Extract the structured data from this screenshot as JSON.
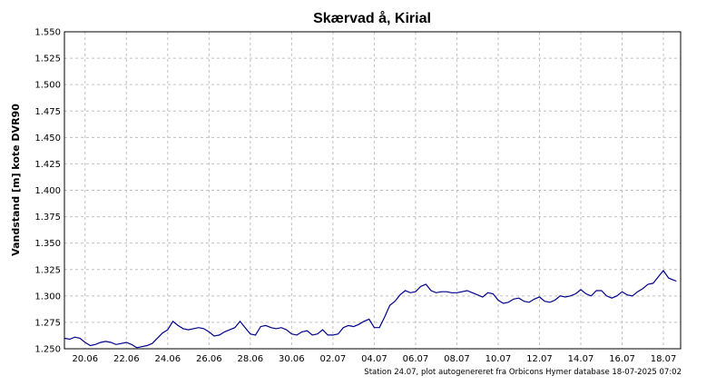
{
  "chart_data": {
    "type": "line",
    "title": "Skærvad å, Kirial",
    "ylabel": "Vandstand [m] kote DVR90",
    "xlabel": "",
    "footer": "Station 24.07, plot autogenereret fra Orbicons Hymer database 18-07-2025 07:02",
    "ylim": [
      1.25,
      1.55
    ],
    "yticks": [
      "1.550",
      "1.525",
      "1.500",
      "1.475",
      "1.450",
      "1.425",
      "1.400",
      "1.375",
      "1.350",
      "1.325",
      "1.300",
      "1.275",
      "1.250"
    ],
    "xlim": [
      "2025-06-19T00:00",
      "2025-07-18T20:00"
    ],
    "xticks": [
      {
        "label": "20.06",
        "date": "2025-06-20"
      },
      {
        "label": "22.06",
        "date": "2025-06-22"
      },
      {
        "label": "24.06",
        "date": "2025-06-24"
      },
      {
        "label": "26.06",
        "date": "2025-06-26"
      },
      {
        "label": "28.06",
        "date": "2025-06-28"
      },
      {
        "label": "30.06",
        "date": "2025-06-30"
      },
      {
        "label": "02.07",
        "date": "2025-07-02"
      },
      {
        "label": "04.07",
        "date": "2025-07-04"
      },
      {
        "label": "06.07",
        "date": "2025-07-06"
      },
      {
        "label": "08.07",
        "date": "2025-07-08"
      },
      {
        "label": "10.07",
        "date": "2025-07-10"
      },
      {
        "label": "12.07",
        "date": "2025-07-12"
      },
      {
        "label": "14.07",
        "date": "2025-07-14"
      },
      {
        "label": "16.07",
        "date": "2025-07-16"
      },
      {
        "label": "18.07",
        "date": "2025-07-18"
      }
    ],
    "grid": true,
    "line_color": "#00008b",
    "series": [
      {
        "name": "",
        "points": [
          [
            "2025-06-19T00:00",
            1.26
          ],
          [
            "2025-06-19T06:00",
            1.259
          ],
          [
            "2025-06-19T12:00",
            1.261
          ],
          [
            "2025-06-19T18:00",
            1.26
          ],
          [
            "2025-06-20T00:00",
            1.256
          ],
          [
            "2025-06-20T06:00",
            1.253
          ],
          [
            "2025-06-20T12:00",
            1.254
          ],
          [
            "2025-06-20T18:00",
            1.256
          ],
          [
            "2025-06-21T00:00",
            1.257
          ],
          [
            "2025-06-21T06:00",
            1.256
          ],
          [
            "2025-06-21T12:00",
            1.254
          ],
          [
            "2025-06-21T18:00",
            1.255
          ],
          [
            "2025-06-22T00:00",
            1.256
          ],
          [
            "2025-06-22T06:00",
            1.254
          ],
          [
            "2025-06-22T12:00",
            1.251
          ],
          [
            "2025-06-22T18:00",
            1.252
          ],
          [
            "2025-06-23T00:00",
            1.253
          ],
          [
            "2025-06-23T06:00",
            1.255
          ],
          [
            "2025-06-23T12:00",
            1.26
          ],
          [
            "2025-06-23T18:00",
            1.265
          ],
          [
            "2025-06-24T00:00",
            1.268
          ],
          [
            "2025-06-24T06:00",
            1.276
          ],
          [
            "2025-06-24T12:00",
            1.272
          ],
          [
            "2025-06-24T18:00",
            1.269
          ],
          [
            "2025-06-25T00:00",
            1.268
          ],
          [
            "2025-06-25T06:00",
            1.269
          ],
          [
            "2025-06-25T12:00",
            1.27
          ],
          [
            "2025-06-25T18:00",
            1.269
          ],
          [
            "2025-06-26T00:00",
            1.266
          ],
          [
            "2025-06-26T06:00",
            1.262
          ],
          [
            "2025-06-26T12:00",
            1.263
          ],
          [
            "2025-06-26T18:00",
            1.266
          ],
          [
            "2025-06-27T00:00",
            1.268
          ],
          [
            "2025-06-27T06:00",
            1.27
          ],
          [
            "2025-06-27T12:00",
            1.276
          ],
          [
            "2025-06-27T18:00",
            1.27
          ],
          [
            "2025-06-28T00:00",
            1.264
          ],
          [
            "2025-06-28T06:00",
            1.263
          ],
          [
            "2025-06-28T12:00",
            1.271
          ],
          [
            "2025-06-28T18:00",
            1.272
          ],
          [
            "2025-06-29T00:00",
            1.27
          ],
          [
            "2025-06-29T06:00",
            1.269
          ],
          [
            "2025-06-29T12:00",
            1.27
          ],
          [
            "2025-06-29T18:00",
            1.268
          ],
          [
            "2025-06-30T00:00",
            1.264
          ],
          [
            "2025-06-30T06:00",
            1.263
          ],
          [
            "2025-06-30T12:00",
            1.266
          ],
          [
            "2025-06-30T18:00",
            1.267
          ],
          [
            "2025-07-01T00:00",
            1.263
          ],
          [
            "2025-07-01T06:00",
            1.264
          ],
          [
            "2025-07-01T12:00",
            1.268
          ],
          [
            "2025-07-01T18:00",
            1.263
          ],
          [
            "2025-07-02T00:00",
            1.263
          ],
          [
            "2025-07-02T06:00",
            1.264
          ],
          [
            "2025-07-02T12:00",
            1.27
          ],
          [
            "2025-07-02T18:00",
            1.272
          ],
          [
            "2025-07-03T00:00",
            1.271
          ],
          [
            "2025-07-03T06:00",
            1.273
          ],
          [
            "2025-07-03T12:00",
            1.276
          ],
          [
            "2025-07-03T18:00",
            1.278
          ],
          [
            "2025-07-04T00:00",
            1.27
          ],
          [
            "2025-07-04T06:00",
            1.27
          ],
          [
            "2025-07-04T12:00",
            1.28
          ],
          [
            "2025-07-04T18:00",
            1.291
          ],
          [
            "2025-07-05T00:00",
            1.295
          ],
          [
            "2025-07-05T06:00",
            1.301
          ],
          [
            "2025-07-05T12:00",
            1.305
          ],
          [
            "2025-07-05T18:00",
            1.303
          ],
          [
            "2025-07-06T00:00",
            1.304
          ],
          [
            "2025-07-06T06:00",
            1.309
          ],
          [
            "2025-07-06T12:00",
            1.311
          ],
          [
            "2025-07-06T18:00",
            1.305
          ],
          [
            "2025-07-07T00:00",
            1.303
          ],
          [
            "2025-07-07T06:00",
            1.304
          ],
          [
            "2025-07-07T12:00",
            1.304
          ],
          [
            "2025-07-07T18:00",
            1.303
          ],
          [
            "2025-07-08T00:00",
            1.303
          ],
          [
            "2025-07-08T06:00",
            1.304
          ],
          [
            "2025-07-08T12:00",
            1.305
          ],
          [
            "2025-07-08T18:00",
            1.303
          ],
          [
            "2025-07-09T00:00",
            1.301
          ],
          [
            "2025-07-09T06:00",
            1.299
          ],
          [
            "2025-07-09T12:00",
            1.303
          ],
          [
            "2025-07-09T18:00",
            1.302
          ],
          [
            "2025-07-10T00:00",
            1.296
          ],
          [
            "2025-07-10T06:00",
            1.293
          ],
          [
            "2025-07-10T12:00",
            1.294
          ],
          [
            "2025-07-10T18:00",
            1.297
          ],
          [
            "2025-07-11T00:00",
            1.298
          ],
          [
            "2025-07-11T06:00",
            1.295
          ],
          [
            "2025-07-11T12:00",
            1.294
          ],
          [
            "2025-07-11T18:00",
            1.297
          ],
          [
            "2025-07-12T00:00",
            1.299
          ],
          [
            "2025-07-12T06:00",
            1.295
          ],
          [
            "2025-07-12T12:00",
            1.294
          ],
          [
            "2025-07-12T18:00",
            1.296
          ],
          [
            "2025-07-13T00:00",
            1.3
          ],
          [
            "2025-07-13T06:00",
            1.299
          ],
          [
            "2025-07-13T12:00",
            1.3
          ],
          [
            "2025-07-13T18:00",
            1.302
          ],
          [
            "2025-07-14T00:00",
            1.306
          ],
          [
            "2025-07-14T06:00",
            1.302
          ],
          [
            "2025-07-14T12:00",
            1.3
          ],
          [
            "2025-07-14T18:00",
            1.305
          ],
          [
            "2025-07-15T00:00",
            1.305
          ],
          [
            "2025-07-15T06:00",
            1.3
          ],
          [
            "2025-07-15T12:00",
            1.298
          ],
          [
            "2025-07-15T18:00",
            1.3
          ],
          [
            "2025-07-16T00:00",
            1.304
          ],
          [
            "2025-07-16T06:00",
            1.301
          ],
          [
            "2025-07-16T12:00",
            1.3
          ],
          [
            "2025-07-16T18:00",
            1.304
          ],
          [
            "2025-07-17T00:00",
            1.307
          ],
          [
            "2025-07-17T06:00",
            1.311
          ],
          [
            "2025-07-17T12:00",
            1.312
          ],
          [
            "2025-07-17T18:00",
            1.318
          ],
          [
            "2025-07-18T00:00",
            1.324
          ],
          [
            "2025-07-18T06:00",
            1.317
          ],
          [
            "2025-07-18T12:00",
            1.315
          ],
          [
            "2025-07-18T15:00",
            1.314
          ]
        ]
      }
    ]
  }
}
